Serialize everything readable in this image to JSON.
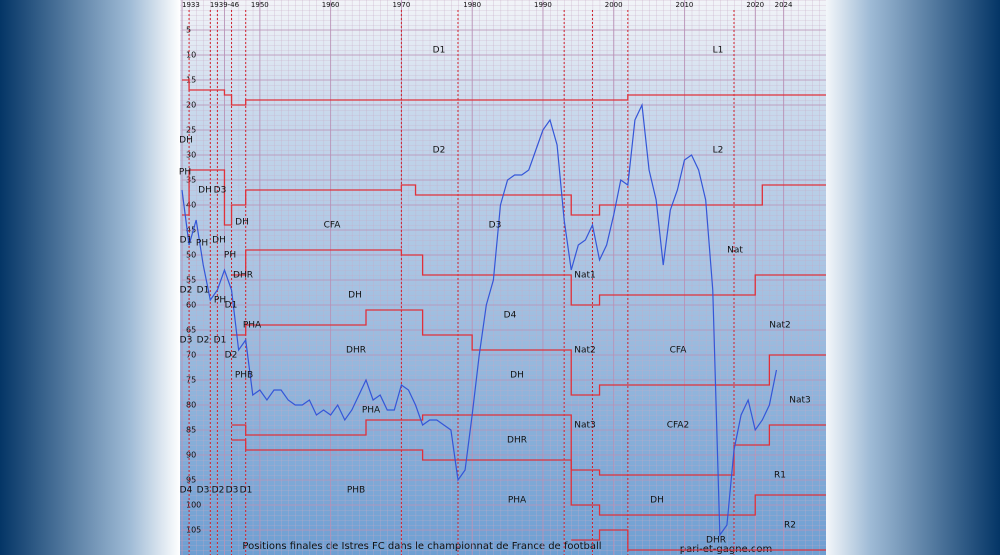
{
  "chart_data": {
    "type": "line",
    "title": "Positions finales de Istres FC dans le championnat de France de football",
    "source": "pari-et-gagne.com",
    "xlim": [
      1933,
      2030
    ],
    "axis_break": [
      1939,
      1946
    ],
    "ylim": [
      0,
      110
    ],
    "y_inverted": true,
    "xticks": [
      1933,
      {
        "value": 1939,
        "label": "1939-46"
      },
      1950,
      1960,
      1970,
      1980,
      1990,
      2000,
      2010,
      2020,
      2024
    ],
    "yticks": [
      5,
      10,
      15,
      20,
      25,
      30,
      35,
      40,
      45,
      50,
      55,
      60,
      65,
      70,
      75,
      80,
      85,
      90,
      95,
      100,
      105
    ],
    "grid": true,
    "reform_years": [
      1934,
      1937,
      1938,
      1946,
      1948,
      1970,
      1978,
      1993,
      1997,
      2002,
      2017
    ],
    "league_labels": [
      "D1",
      "L1",
      "DH",
      "D2",
      "L2",
      "PH",
      "DH",
      "D3",
      "CFA",
      "D3",
      "DH",
      "D1",
      "PH",
      "DH",
      "Nat",
      "PH",
      "DHR",
      "Nat1",
      "D2",
      "D1",
      "PH",
      "D1",
      "DH",
      "D4",
      "PHA",
      "Nat2",
      "D3",
      "D2",
      "D1",
      "D2",
      "DHR",
      "Nat2",
      "CFA",
      "PHB",
      "DH",
      "Nat3",
      "PHA",
      "DHR",
      "Nat3",
      "CFA2",
      "R1",
      "D4",
      "D3",
      "D2",
      "D3",
      "D1",
      "PHB",
      "PHA",
      "DH",
      "DHR",
      "R2"
    ],
    "series": [
      {
        "name": "Istres FC",
        "color": "#3556d8",
        "x": [
          1933,
          1934,
          1935,
          1936,
          1937,
          1938,
          1939,
          1946,
          1947,
          1948,
          1949,
          1950,
          1951,
          1952,
          1953,
          1954,
          1955,
          1956,
          1957,
          1958,
          1959,
          1960,
          1961,
          1962,
          1963,
          1964,
          1965,
          1966,
          1967,
          1968,
          1969,
          1970,
          1971,
          1972,
          1973,
          1974,
          1975,
          1976,
          1977,
          1978,
          1979,
          1980,
          1981,
          1982,
          1983,
          1984,
          1985,
          1986,
          1987,
          1988,
          1989,
          1990,
          1991,
          1992,
          1993,
          1994,
          1995,
          1996,
          1997,
          1998,
          1999,
          2000,
          2001,
          2002,
          2003,
          2004,
          2005,
          2006,
          2007,
          2008,
          2009,
          2010,
          2011,
          2012,
          2013,
          2014,
          2015,
          2016,
          2017,
          2018,
          2019,
          2020,
          2021,
          2022,
          2023
        ],
        "values": [
          37,
          48,
          43,
          52,
          59,
          57,
          53,
          57,
          69,
          67,
          78,
          77,
          79,
          77,
          77,
          79,
          80,
          80,
          79,
          82,
          81,
          82,
          80,
          83,
          81,
          78,
          75,
          79,
          78,
          81,
          81,
          76,
          77,
          80,
          84,
          83,
          83,
          84,
          85,
          95,
          93,
          82,
          70,
          60,
          55,
          40,
          35,
          34,
          34,
          33,
          29,
          25,
          23,
          28,
          43,
          53,
          48,
          47,
          44,
          51,
          48,
          42,
          35,
          36,
          23,
          20,
          33,
          39,
          52,
          41,
          37,
          31,
          30,
          33,
          39,
          57,
          106,
          104,
          89,
          82,
          79,
          85,
          83,
          80,
          73
        ]
      },
      {
        "name": "D1 / L1",
        "color": "#e0303a",
        "step": true,
        "x": [
          1933,
          1934,
          1939,
          1946,
          1948,
          1994,
          2002,
          2030
        ],
        "values": [
          15,
          17,
          18,
          20,
          19,
          19,
          18,
          18
        ]
      },
      {
        "name": "D2 / L2",
        "color": "#e0303a",
        "step": true,
        "x": [
          1933,
          1934,
          1939,
          1946,
          1948,
          1970,
          1972,
          1994,
          1998,
          2021,
          2030
        ],
        "values": [
          42,
          33,
          44,
          40,
          37,
          36,
          38,
          42,
          40,
          36,
          36
        ]
      },
      {
        "name": "CFA / Nat",
        "color": "#e0303a",
        "step": true,
        "x": [
          1946,
          1948,
          1970,
          1973,
          1994,
          1998,
          2020,
          2030
        ],
        "values": [
          54,
          49,
          50,
          54,
          60,
          58,
          54,
          54
        ]
      },
      {
        "name": "DH / Nat2",
        "color": "#e0303a",
        "step": true,
        "x": [
          1946,
          1948,
          1965,
          1973,
          1980,
          1994,
          1998,
          2022,
          2030
        ],
        "values": [
          66,
          64,
          61,
          66,
          69,
          78,
          76,
          70,
          70
        ]
      },
      {
        "name": "DHR / Nat3",
        "color": "#e0303a",
        "step": true,
        "x": [
          1946,
          1948,
          1965,
          1973,
          1994,
          1998,
          2017,
          2022,
          2030
        ],
        "values": [
          84,
          86,
          83,
          82,
          93,
          94,
          88,
          84,
          84
        ]
      },
      {
        "name": "PHA / R1",
        "color": "#e0303a",
        "step": true,
        "x": [
          1946,
          1948,
          1973,
          1994,
          1998,
          2020,
          2030
        ],
        "values": [
          87,
          89,
          91,
          100,
          102,
          98,
          98
        ]
      },
      {
        "name": "PHB / R2",
        "color": "#e0303a",
        "step": true,
        "x": [
          1994,
          1998,
          2002,
          2030
        ],
        "values": [
          107,
          105,
          109,
          109
        ]
      }
    ]
  }
}
